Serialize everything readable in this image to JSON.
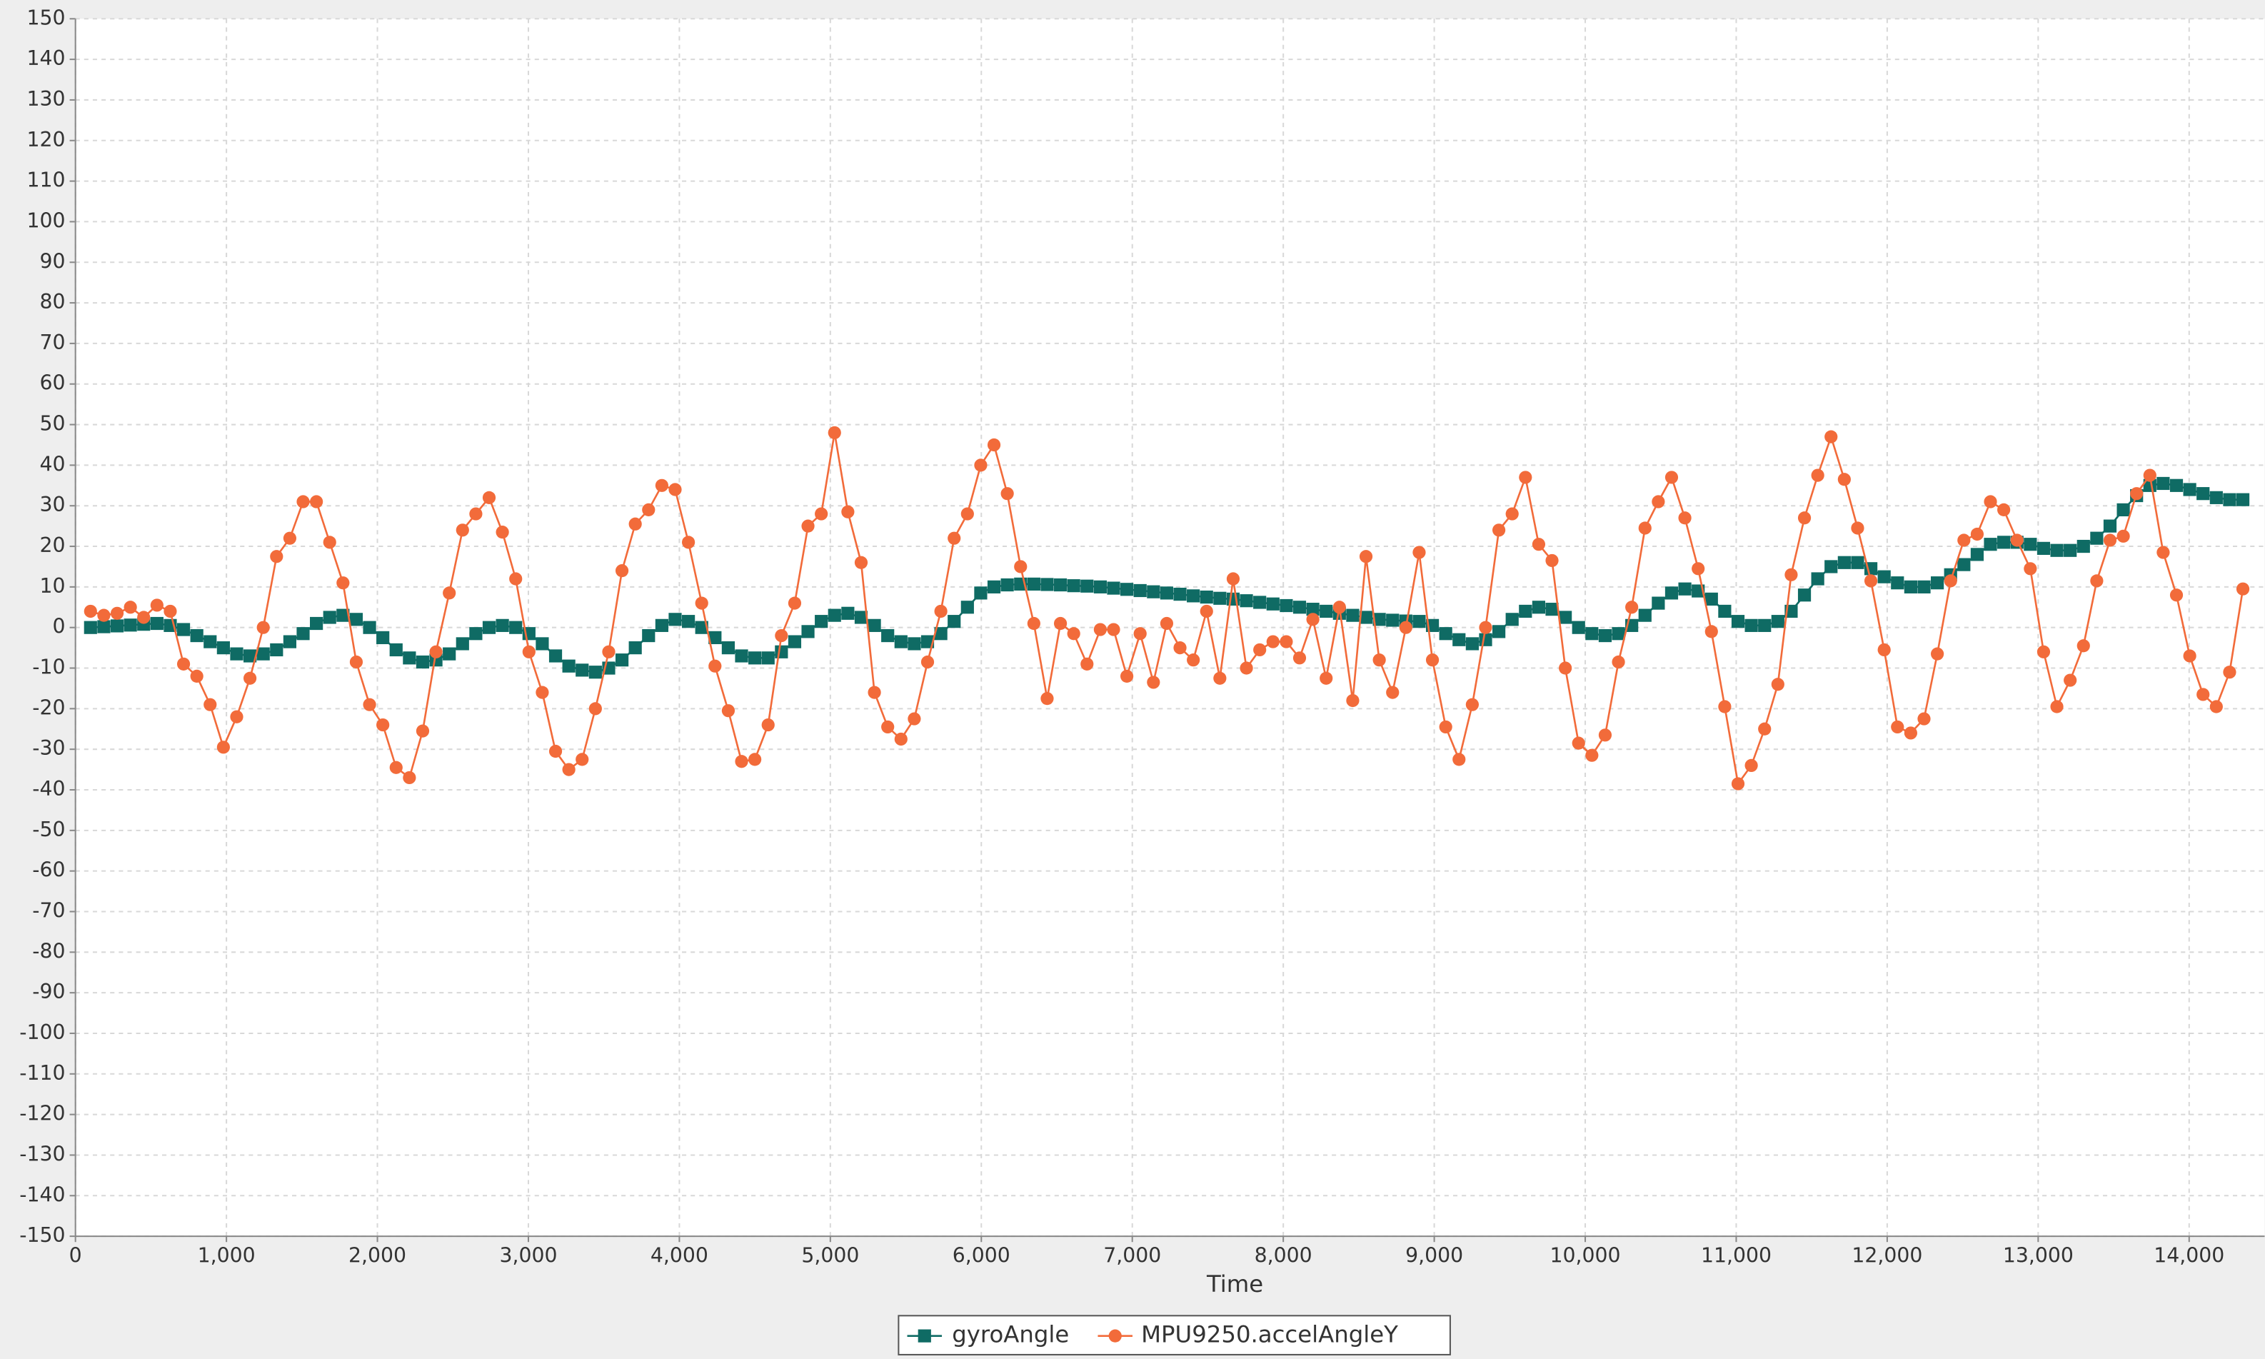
{
  "chart_data": {
    "type": "line",
    "x_label": "Time",
    "xlim": [
      0,
      14500
    ],
    "ylim": [
      -150,
      150
    ],
    "grid": true,
    "xticks": [
      0,
      {
        "value": 1000,
        "label": "1,000"
      },
      {
        "value": 2000,
        "label": "2,000"
      },
      {
        "value": 3000,
        "label": "3,000"
      },
      {
        "value": 4000,
        "label": "4,000"
      },
      {
        "value": 5000,
        "label": "5,000"
      },
      {
        "value": 6000,
        "label": "6,000"
      },
      {
        "value": 7000,
        "label": "7,000"
      },
      {
        "value": 8000,
        "label": "8,000"
      },
      {
        "value": 9000,
        "label": "9,000"
      },
      {
        "value": 10000,
        "label": "10,000"
      },
      {
        "value": 11000,
        "label": "11,000"
      },
      {
        "value": 12000,
        "label": "12,000"
      },
      {
        "value": 13000,
        "label": "13,000"
      },
      {
        "value": 14000,
        "label": "14,000"
      }
    ],
    "yticks": [
      -150,
      -140,
      -130,
      -120,
      -110,
      -100,
      -90,
      -80,
      -70,
      -60,
      -50,
      -40,
      -30,
      -20,
      -10,
      0,
      10,
      20,
      30,
      40,
      50,
      60,
      70,
      80,
      90,
      100,
      110,
      120,
      130,
      140,
      150
    ],
    "legend": "bottom",
    "x": [
      100,
      188,
      276,
      364,
      452,
      540,
      628,
      716,
      804,
      892,
      980,
      1068,
      1156,
      1244,
      1332,
      1420,
      1508,
      1596,
      1684,
      1772,
      1860,
      1948,
      2036,
      2124,
      2212,
      2300,
      2388,
      2476,
      2564,
      2652,
      2740,
      2828,
      2916,
      3004,
      3092,
      3180,
      3268,
      3356,
      3444,
      3532,
      3620,
      3708,
      3796,
      3884,
      3972,
      4060,
      4148,
      4236,
      4324,
      4412,
      4500,
      4588,
      4676,
      4764,
      4852,
      4940,
      5028,
      5116,
      5204,
      5292,
      5380,
      5468,
      5556,
      5644,
      5732,
      5820,
      5908,
      5996,
      6084,
      6172,
      6260,
      6348,
      6436,
      6524,
      6612,
      6700,
      6788,
      6876,
      6964,
      7052,
      7140,
      7228,
      7316,
      7404,
      7492,
      7580,
      7668,
      7756,
      7844,
      7932,
      8020,
      8108,
      8196,
      8284,
      8372,
      8460,
      8548,
      8636,
      8724,
      8812,
      8900,
      8988,
      9076,
      9164,
      9252,
      9340,
      9428,
      9516,
      9604,
      9692,
      9780,
      9868,
      9956,
      10044,
      10132,
      10220,
      10308,
      10396,
      10484,
      10572,
      10660,
      10748,
      10836,
      10924,
      11012,
      11100,
      11188,
      11276,
      11364,
      11452,
      11540,
      11628,
      11716,
      11804,
      11892,
      11980,
      12068,
      12156,
      12244,
      12332,
      12420,
      12508,
      12596,
      12684,
      12772,
      12860,
      12948,
      13036,
      13124,
      13212,
      13300,
      13388,
      13476,
      13564,
      13652,
      13740,
      13828,
      13916,
      14004,
      14092,
      14180,
      14268,
      14356
    ],
    "series": [
      {
        "name": "gyroAngle",
        "color": "#0f6b64",
        "marker": "square",
        "values": [
          0,
          0.2,
          0.4,
          0.6,
          0.8,
          1,
          0.5,
          -0.5,
          -2,
          -3.5,
          -5,
          -6.5,
          -7,
          -6.5,
          -5.5,
          -3.5,
          -1.5,
          1,
          2.5,
          3,
          2,
          0,
          -2.5,
          -5.5,
          -7.5,
          -8.5,
          -8,
          -6.5,
          -4,
          -1.5,
          0,
          0.5,
          0,
          -1.5,
          -4,
          -7,
          -9.5,
          -10.5,
          -11,
          -10,
          -8,
          -5,
          -2,
          0.5,
          2,
          1.5,
          0,
          -2.5,
          -5,
          -7,
          -7.5,
          -7.5,
          -6,
          -3.5,
          -1,
          1.5,
          3,
          3.5,
          2.5,
          0.5,
          -2,
          -3.5,
          -4,
          -3.5,
          -1.5,
          1.5,
          5,
          8.5,
          10,
          10.5,
          10.7,
          10.7,
          10.6,
          10.5,
          10.3,
          10.2,
          10,
          9.7,
          9.4,
          9.1,
          8.8,
          8.5,
          8.2,
          7.8,
          7.5,
          7.2,
          7,
          6.6,
          6.2,
          5.8,
          5.4,
          5,
          4.5,
          4,
          3.5,
          3,
          2.5,
          2,
          1.8,
          1.6,
          1.5,
          0.5,
          -1.5,
          -3,
          -4,
          -3,
          -1,
          2,
          4,
          5,
          4.5,
          2.5,
          0,
          -1.5,
          -2,
          -1.5,
          0.5,
          3,
          6,
          8.5,
          9.5,
          9,
          7,
          4,
          1.5,
          0.5,
          0.5,
          1.5,
          4,
          8,
          12,
          15,
          16,
          16,
          14.5,
          12.5,
          11,
          10,
          10,
          11,
          13,
          15.5,
          18,
          20.5,
          21,
          21,
          20.5,
          19.5,
          19,
          19,
          20,
          22,
          25,
          29,
          32.5,
          35,
          35.5,
          35,
          34,
          33,
          32,
          31.5,
          31.5
        ]
      },
      {
        "name": "MPU9250.accelAngleY",
        "color": "#f26b3a",
        "marker": "circle",
        "values": [
          4,
          3,
          3.5,
          5,
          2.5,
          5.5,
          4,
          -9,
          -12,
          -19,
          -29.5,
          -22,
          -12.5,
          0,
          17.5,
          22,
          31,
          31,
          21,
          11,
          -8.5,
          -19,
          -24,
          -34.5,
          -37,
          -25.5,
          -6,
          8.5,
          24,
          28,
          32,
          23.5,
          12,
          -6,
          -16,
          -30.5,
          -35,
          -32.5,
          -20,
          -6,
          14,
          25.5,
          29,
          35,
          34,
          21,
          6,
          -9.5,
          -20.5,
          -33,
          -32.5,
          -24,
          -2,
          6,
          25,
          28,
          48,
          28.5,
          16,
          -16,
          -24.5,
          -27.5,
          -22.5,
          -8.5,
          4,
          22,
          28,
          40,
          45,
          33,
          15,
          1,
          -17.5,
          1,
          -1.5,
          -9,
          -0.5,
          -0.5,
          -12,
          -1.5,
          -13.5,
          1,
          -5,
          -8,
          4,
          -12.5,
          12,
          -10,
          -5.5,
          -3.5,
          -3.5,
          -7.5,
          2,
          -12.5,
          5,
          -18,
          17.5,
          -8,
          -16,
          0,
          18.5,
          -8,
          -24.5,
          -32.5,
          -19,
          0,
          24,
          28,
          37,
          20.5,
          16.5,
          -10,
          -28.5,
          -31.5,
          -26.5,
          -8.5,
          5,
          24.5,
          31,
          37,
          27,
          14.5,
          -1,
          -19.5,
          -38.5,
          -34,
          -25,
          -14,
          13,
          27,
          37.5,
          47,
          36.5,
          24.5,
          11.5,
          -5.5,
          -24.5,
          -26,
          -22.5,
          -6.5,
          11.5,
          21.5,
          23,
          31,
          29,
          21.5,
          14.5,
          -6,
          -19.5,
          -13,
          -4.5,
          11.5,
          21.5,
          22.5,
          33,
          37.5,
          18.5,
          8,
          -7,
          -16.5,
          -19.5,
          -11,
          9.5
        ]
      }
    ]
  }
}
